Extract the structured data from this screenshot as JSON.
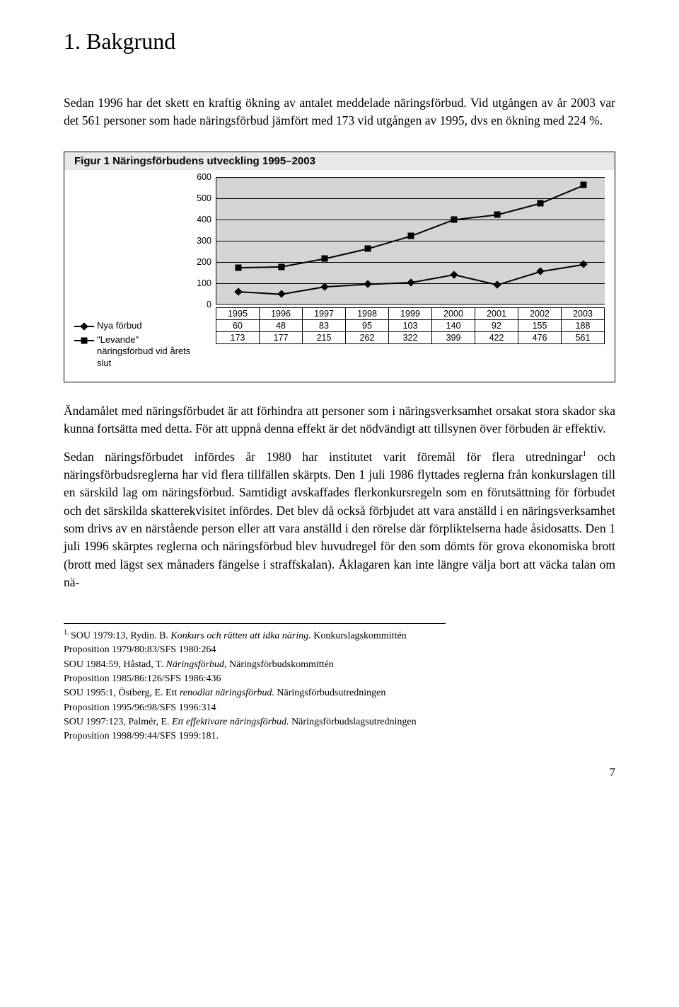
{
  "heading": "1. Bakgrund",
  "intro": "Sedan 1996 har det skett en kraftig ökning av antalet meddelade näringsförbud. Vid utgången av år 2003 var det 561 personer som hade näringsförbud jämfört med 173 vid utgången av 1995, dvs en ökning med 224 %.",
  "figure": {
    "title": "Figur 1 Näringsförbudens utveckling 1995–2003",
    "type": "line",
    "years": [
      "1995",
      "1996",
      "1997",
      "1998",
      "1999",
      "2000",
      "2001",
      "2002",
      "2003"
    ],
    "ylim": [
      0,
      600
    ],
    "yticks": [
      0,
      100,
      200,
      300,
      400,
      500,
      600
    ],
    "background_color": "#d4d4d4",
    "grid_color": "#000000",
    "font_family": "Arial",
    "series": [
      {
        "name": "Nya förbud",
        "marker": "diamond",
        "values": [
          60,
          48,
          83,
          95,
          103,
          140,
          92,
          155,
          188
        ]
      },
      {
        "name": "\"Levande\" näringsförbud vid årets slut",
        "marker": "square",
        "values": [
          173,
          177,
          215,
          262,
          322,
          399,
          422,
          476,
          561
        ]
      }
    ]
  },
  "para1": "Ändamålet med näringsförbudet är att förhindra att personer som i näringsverksamhet orsakat stora skador ska kunna fortsätta med detta. För att uppnå denna effekt är det nödvändigt att tillsynen över förbuden är effektiv.",
  "para2_pre": "Sedan näringsförbudet infördes år 1980 har institutet varit föremål för flera utredningar",
  "para2_sup": "1",
  "para2_post": " och näringsförbudsreglerna har vid flera tillfällen skärpts. Den 1 juli 1986 flyttades reglerna från konkurslagen till en särskild lag om näringsförbud. Samtidigt avskaffades flerkonkursregeln som en förutsättning för förbudet och det särskilda skatterekvisitet infördes. Det blev då också förbjudet att vara anställd i en näringsverksamhet som drivs av en närstående person eller att vara anställd i den rörelse där förpliktelserna hade åsidosatts. Den 1 juli 1996 skärptes reglerna och näringsförbud blev huvudregel för den som dömts för grova ekonomiska brott (brott med lägst sex månaders fängelse i straffskalan). Åklagaren kan inte längre välja bort att väcka talan om nä-",
  "footnote_num": "1.",
  "footnotes": [
    {
      "plain": "SOU 1979:13, Rydin. B. ",
      "em": "Konkurs och rätten att idka näring.",
      "tail": " Konkurslagskommittén"
    },
    {
      "plain": "Proposition 1979/80:83/SFS 1980:264",
      "em": "",
      "tail": ""
    },
    {
      "plain": "SOU 1984:59, Håstad, T. ",
      "em": "Näringsförbud",
      "tail": ", Näringsförbudskommittén"
    },
    {
      "plain": "Proposition 1985/86:126/SFS 1986:436",
      "em": "",
      "tail": ""
    },
    {
      "plain": "SOU 1995:1, Östberg, E. Ett ",
      "em": "renodlat näringsförbud.",
      "tail": " Näringsförbudsutredningen"
    },
    {
      "plain": "Proposition 1995/96:98/SFS 1996:314",
      "em": "",
      "tail": ""
    },
    {
      "plain": "SOU 1997:123, Palmér, E. ",
      "em": "Ett effektivare näringsförbud.",
      "tail": " Näringsförbudslagsutredningen"
    },
    {
      "plain": "Proposition 1998/99:44/SFS 1999:181.",
      "em": "",
      "tail": ""
    }
  ],
  "page_number": "7"
}
